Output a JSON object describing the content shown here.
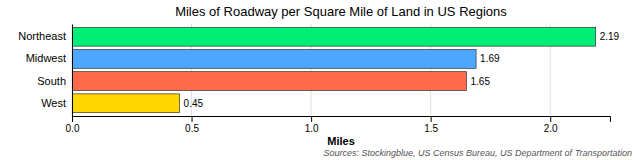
{
  "chart_data": {
    "type": "bar",
    "orientation": "horizontal",
    "title": "Miles of Roadway per Square Mile of Land in US Regions",
    "categories": [
      "Northeast",
      "Midwest",
      "South",
      "West"
    ],
    "values": [
      2.19,
      1.69,
      1.65,
      0.45
    ],
    "colors": [
      "#00ee76",
      "#4da6ff",
      "#ff6b4a",
      "#ffd700"
    ],
    "xlabel": "Miles",
    "xlim": [
      0,
      2.25
    ],
    "xticks": [
      {
        "value": 0,
        "label": "0.0"
      },
      0.5,
      {
        "value": 1,
        "label": "1.0"
      },
      1.5,
      {
        "value": 2,
        "label": "2.0"
      }
    ],
    "grid": true,
    "data_labels": true,
    "annotation": "Sources: Stockingblue, US Census Bureau, US Department of Transportation"
  }
}
